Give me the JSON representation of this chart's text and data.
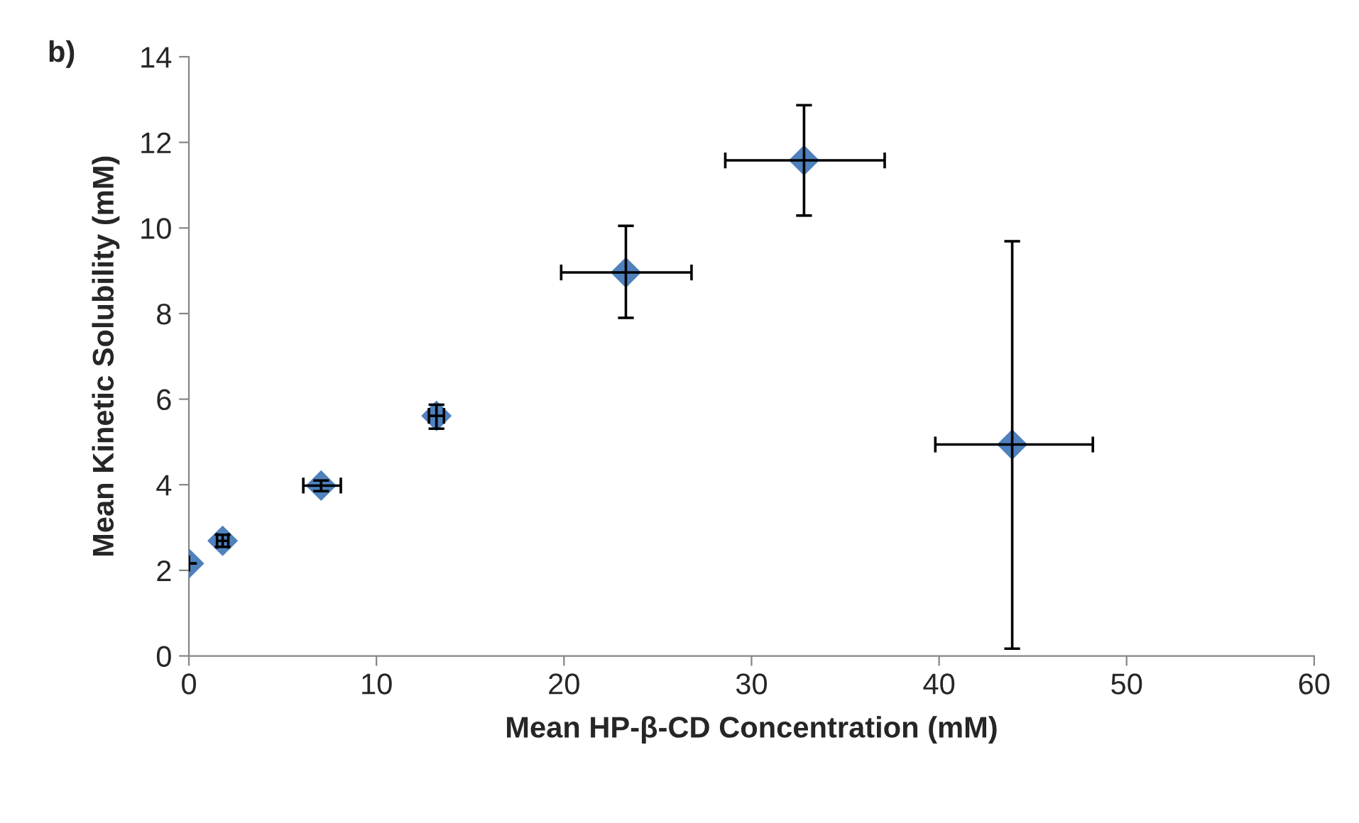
{
  "chart_data": {
    "type": "scatter",
    "xlabel": "Mean HP-β-CD Concentration (mM)",
    "ylabel": "Mean Kinetic Solubility (mM)",
    "annotations": [
      "b)"
    ],
    "x": [
      0,
      1.8,
      7.05,
      13.2,
      23.3,
      32.8,
      43.9
    ],
    "series": [
      {
        "color": "#4f81bd",
        "values": [
          2.16,
          2.69,
          3.98,
          5.61,
          8.96,
          11.58,
          4.94
        ],
        "errors": [
          null,
          [
            2.55,
            2.83
          ],
          [
            3.85,
            4.1
          ],
          [
            5.31,
            5.87
          ],
          [
            7.9,
            10.05
          ],
          [
            10.29,
            12.87
          ],
          [
            0.17,
            9.69
          ]
        ],
        "xerrors": [
          null,
          [
            1.5,
            2.1
          ],
          [
            6.1,
            8.1
          ],
          [
            12.8,
            13.6
          ],
          [
            19.85,
            26.8
          ],
          [
            28.6,
            37.1
          ],
          [
            39.8,
            48.2
          ]
        ]
      }
    ],
    "marker": "diamond",
    "xlim": [
      0,
      60
    ],
    "xticks": [
      0,
      10,
      20,
      30,
      40,
      50,
      60
    ],
    "ylim": [
      0,
      14
    ],
    "yticks": [
      0,
      2,
      4,
      6,
      8,
      10,
      12,
      14
    ],
    "grid": false
  }
}
